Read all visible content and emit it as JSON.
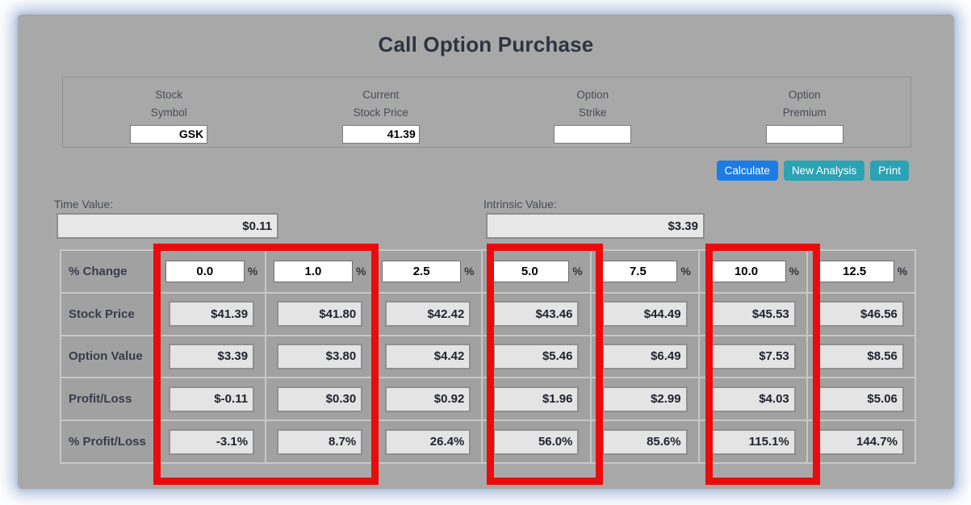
{
  "title": "Call Option Purchase",
  "form": {
    "fields": [
      {
        "label_line1": "Stock",
        "label_line2": "Symbol",
        "value": "GSK"
      },
      {
        "label_line1": "Current",
        "label_line2": "Stock Price",
        "value": "41.39"
      },
      {
        "label_line1": "Option",
        "label_line2": "Strike",
        "value": ""
      },
      {
        "label_line1": "Option",
        "label_line2": "Premium",
        "value": ""
      }
    ]
  },
  "buttons": {
    "calculate": "Calculate",
    "new_analysis": "New Analysis",
    "print": "Print"
  },
  "summary": {
    "time_value_label": "Time Value:",
    "time_value": "$0.11",
    "intrinsic_value_label": "Intrinsic Value:",
    "intrinsic_value": "$3.39"
  },
  "table": {
    "change_row": {
      "label": "% Change",
      "suffix": "%",
      "values": [
        "0.0",
        "1.0",
        "2.5",
        "5.0",
        "7.5",
        "10.0",
        "12.5"
      ]
    },
    "rows": [
      {
        "label": "Stock Price",
        "values": [
          "$41.39",
          "$41.80",
          "$42.42",
          "$43.46",
          "$44.49",
          "$45.53",
          "$46.56"
        ]
      },
      {
        "label": "Option Value",
        "values": [
          "$3.39",
          "$3.80",
          "$4.42",
          "$5.46",
          "$6.49",
          "$7.53",
          "$8.56"
        ]
      },
      {
        "label": "Profit/Loss",
        "values": [
          "$-0.11",
          "$0.30",
          "$0.92",
          "$1.96",
          "$2.99",
          "$4.03",
          "$5.06"
        ]
      },
      {
        "label": "% Profit/Loss",
        "values": [
          "-3.1%",
          "8.7%",
          "26.4%",
          "56.0%",
          "85.6%",
          "115.1%",
          "144.7%"
        ]
      }
    ]
  },
  "colors": {
    "window_bg": "#a8a8a8",
    "calculate_button": "#1b7ce6",
    "secondary_button": "#2aa3b4",
    "highlight_red": "#ea0c0c",
    "readonly_fill": "#e4e4e4"
  }
}
